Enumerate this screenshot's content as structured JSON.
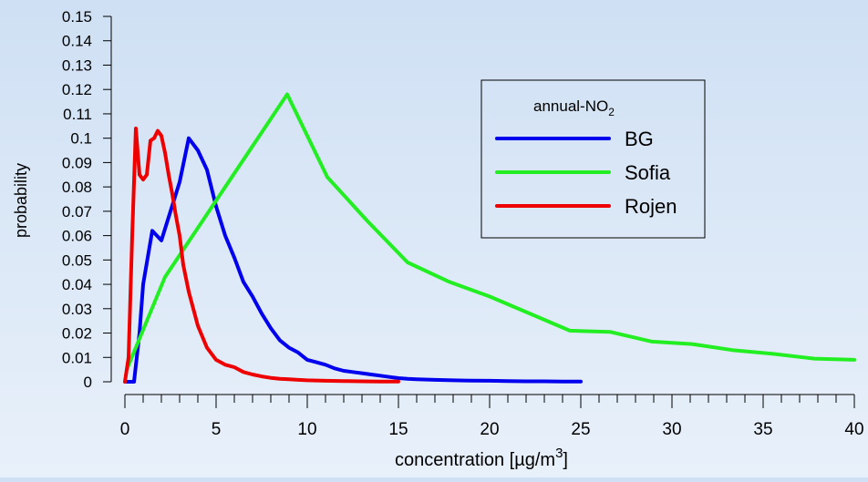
{
  "chart_data": {
    "type": "line",
    "title": "",
    "xlabel": "concentration [µg/m",
    "xlabel_sup": "3",
    "xlabel_end": "]",
    "ylabel": "probability",
    "xlim": [
      0,
      40
    ],
    "ylim": [
      0,
      0.15
    ],
    "x_ticks": [
      0,
      5,
      10,
      15,
      20,
      25,
      30,
      35,
      40
    ],
    "x_tick_labels": [
      "0",
      "5",
      "10",
      "15",
      "20",
      "25",
      "30",
      "35",
      "40"
    ],
    "y_ticks": [
      0,
      0.01,
      0.02,
      0.03,
      0.04,
      0.05,
      0.06,
      0.07,
      0.08,
      0.09,
      0.1,
      0.11,
      0.12,
      0.13,
      0.14,
      0.15
    ],
    "y_tick_labels": [
      "0",
      "0.01",
      "0.02",
      "0.03",
      "0.04",
      "0.05",
      "0.06",
      "0.07",
      "0.08",
      "0.09",
      "0.1",
      "0.11",
      "0.12",
      "0.13",
      "0.14",
      "0.15"
    ],
    "grid": false,
    "legend": {
      "title_main": "annual-NO",
      "title_sub": "2",
      "position": "top-right"
    },
    "series": [
      {
        "name": "BG",
        "color": "#0000ee",
        "x": [
          0.1,
          0.5,
          0.8,
          1.0,
          1.5,
          2.0,
          2.5,
          3.0,
          3.5,
          4.0,
          4.5,
          5.0,
          5.5,
          6.0,
          6.5,
          7.0,
          7.5,
          8.0,
          8.5,
          9.0,
          9.5,
          10.0,
          10.5,
          11.0,
          11.5,
          12.0,
          12.5,
          13.0,
          13.5,
          14.0,
          14.5,
          15.0,
          15.5,
          16.0,
          17.0,
          18.0,
          19.0,
          20.0,
          21.0,
          22.0,
          23.0,
          24.0,
          25.0
        ],
        "y": [
          0.0,
          0.0,
          0.02,
          0.04,
          0.062,
          0.058,
          0.07,
          0.082,
          0.1,
          0.095,
          0.087,
          0.072,
          0.06,
          0.051,
          0.041,
          0.035,
          0.028,
          0.022,
          0.017,
          0.014,
          0.012,
          0.009,
          0.008,
          0.007,
          0.0055,
          0.0045,
          0.004,
          0.0035,
          0.003,
          0.0025,
          0.002,
          0.0015,
          0.0012,
          0.001,
          0.0008,
          0.0006,
          0.0005,
          0.0004,
          0.0003,
          0.0002,
          0.0002,
          0.0001,
          0.0001
        ]
      },
      {
        "name": "Sofia",
        "color": "#22ee22",
        "x": [
          0.1,
          2.2,
          8.9,
          11.1,
          13.3,
          15.5,
          17.8,
          20.0,
          22.2,
          24.4,
          26.6,
          28.9,
          31.1,
          33.3,
          35.5,
          37.8,
          40.0
        ],
        "y": [
          0.005,
          0.043,
          0.118,
          0.084,
          0.066,
          0.049,
          0.041,
          0.035,
          0.028,
          0.021,
          0.0205,
          0.0165,
          0.0155,
          0.013,
          0.0115,
          0.0095,
          0.009
        ]
      },
      {
        "name": "Rojen",
        "color": "#ee0000",
        "x": [
          0.0,
          0.2,
          0.4,
          0.6,
          0.8,
          1.0,
          1.2,
          1.4,
          1.6,
          1.8,
          2.0,
          2.2,
          2.4,
          2.6,
          2.8,
          3.0,
          3.2,
          3.5,
          4.0,
          4.5,
          5.0,
          5.5,
          6.0,
          6.5,
          7.0,
          7.5,
          8.0,
          8.5,
          9.0,
          9.5,
          10.0,
          11.0,
          12.0,
          13.0,
          14.0,
          15.0
        ],
        "y": [
          0.0,
          0.01,
          0.06,
          0.104,
          0.085,
          0.083,
          0.085,
          0.099,
          0.1,
          0.103,
          0.101,
          0.094,
          0.085,
          0.077,
          0.068,
          0.06,
          0.048,
          0.037,
          0.023,
          0.014,
          0.009,
          0.007,
          0.006,
          0.004,
          0.003,
          0.0022,
          0.0016,
          0.0012,
          0.001,
          0.0008,
          0.0006,
          0.0004,
          0.0003,
          0.0002,
          0.0001,
          0.0001
        ]
      }
    ]
  }
}
